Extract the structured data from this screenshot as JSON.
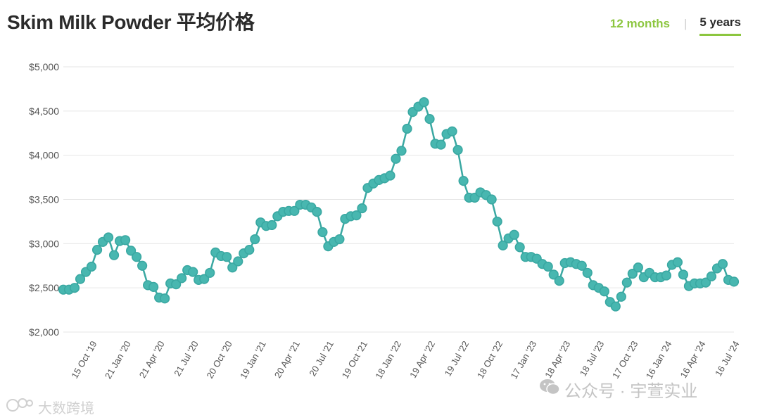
{
  "title": "Skim Milk Powder 平均价格",
  "tabs": [
    {
      "label": "12 months",
      "active": false
    },
    {
      "label": "5 years",
      "active": true
    }
  ],
  "tab_separator": "|",
  "watermarks": {
    "left": "大数跨境",
    "right": "公众号 · 宇萱实业"
  },
  "colors": {
    "series": "#3aa8a2",
    "point_fill": "#48b7b0",
    "accent": "#8cc63f",
    "grid": "#e6e6e6"
  },
  "chart_data": {
    "type": "line",
    "title": "Skim Milk Powder 平均价格",
    "xlabel": "",
    "ylabel": "",
    "ylim": [
      2000,
      5000
    ],
    "yticks": [
      2000,
      2500,
      3000,
      3500,
      4000,
      4500,
      5000
    ],
    "ytick_labels": [
      "$2,000",
      "$2,500",
      "$3,000",
      "$3,500",
      "$4,000",
      "$4,500",
      "$5,000"
    ],
    "grid": true,
    "legend": "none",
    "xtick_labels": [
      {
        "index": 6,
        "label": "15 Oct '19"
      },
      {
        "index": 12,
        "label": "21 Jan '20"
      },
      {
        "index": 18,
        "label": "21 Apr '20"
      },
      {
        "index": 24,
        "label": "21 Jul '20"
      },
      {
        "index": 30,
        "label": "20 Oct '20"
      },
      {
        "index": 36,
        "label": "19 Jan '21"
      },
      {
        "index": 42,
        "label": "20 Apr '21"
      },
      {
        "index": 48,
        "label": "20 Jul '21"
      },
      {
        "index": 54,
        "label": "19 Oct '21"
      },
      {
        "index": 60,
        "label": "18 Jan '22"
      },
      {
        "index": 66,
        "label": "19 Apr '22"
      },
      {
        "index": 72,
        "label": "19 Jul '22"
      },
      {
        "index": 78,
        "label": "18 Oct '22"
      },
      {
        "index": 84,
        "label": "17 Jan '23"
      },
      {
        "index": 90,
        "label": "18 Apr '23"
      },
      {
        "index": 96,
        "label": "18 Jul '23"
      },
      {
        "index": 102,
        "label": "17 Oct '23"
      },
      {
        "index": 108,
        "label": "16 Jan '24"
      },
      {
        "index": 114,
        "label": "16 Apr '24"
      },
      {
        "index": 120,
        "label": "16 Jul '24"
      }
    ],
    "series": [
      {
        "values": [
          2480,
          2480,
          2500,
          2600,
          2680,
          2740,
          2930,
          3020,
          3070,
          2870,
          3030,
          3040,
          2920,
          2850,
          2750,
          2530,
          2510,
          2390,
          2380,
          2550,
          2540,
          2610,
          2700,
          2680,
          2590,
          2600,
          2670,
          2900,
          2860,
          2850,
          2730,
          2800,
          2890,
          2930,
          3050,
          3240,
          3200,
          3210,
          3310,
          3360,
          3370,
          3370,
          3440,
          3440,
          3410,
          3360,
          3130,
          2970,
          3020,
          3050,
          3280,
          3310,
          3320,
          3400,
          3630,
          3680,
          3720,
          3740,
          3770,
          3960,
          4050,
          4300,
          4490,
          4550,
          4600,
          4410,
          4130,
          4120,
          4240,
          4270,
          4060,
          3710,
          3520,
          3520,
          3580,
          3550,
          3500,
          3250,
          2980,
          3060,
          3100,
          2960,
          2850,
          2850,
          2830,
          2770,
          2740,
          2650,
          2580,
          2780,
          2790,
          2770,
          2750,
          2670,
          2530,
          2500,
          2460,
          2340,
          2290,
          2400,
          2560,
          2660,
          2730,
          2620,
          2670,
          2620,
          2620,
          2640,
          2760,
          2790,
          2650,
          2520,
          2550,
          2550,
          2560,
          2630,
          2720,
          2770,
          2590,
          2570
        ]
      }
    ]
  }
}
